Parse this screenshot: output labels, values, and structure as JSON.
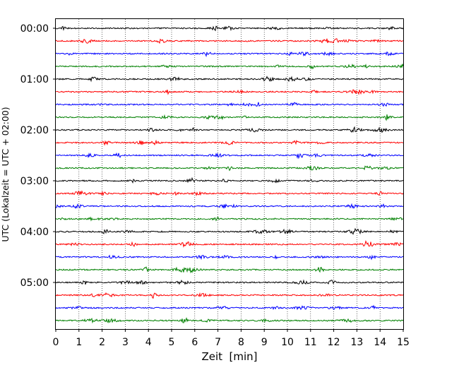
{
  "chart_data": {
    "type": "line",
    "title": "",
    "xlabel": "Zeit  [min]",
    "ylabel": "UTC (Lokalzeit = UTC + 02:00)",
    "xlim": [
      0,
      15
    ],
    "x_ticks": [
      "0",
      "1",
      "2",
      "3",
      "4",
      "5",
      "6",
      "7",
      "8",
      "9",
      "10",
      "11",
      "12",
      "13",
      "14",
      "15"
    ],
    "y_ticks": [
      "00:00",
      "01:00",
      "02:00",
      "03:00",
      "04:00",
      "05:00"
    ],
    "grid": "vertical dotted at each minute",
    "legend": "none",
    "trace_colors": [
      "#000000",
      "#ff0000",
      "#0000ff",
      "#008000"
    ],
    "traces": [
      {
        "start": "00:00",
        "color": "#000000"
      },
      {
        "start": "00:15",
        "color": "#ff0000"
      },
      {
        "start": "00:30",
        "color": "#0000ff"
      },
      {
        "start": "00:45",
        "color": "#008000"
      },
      {
        "start": "01:00",
        "color": "#000000"
      },
      {
        "start": "01:15",
        "color": "#ff0000"
      },
      {
        "start": "01:30",
        "color": "#0000ff"
      },
      {
        "start": "01:45",
        "color": "#008000"
      },
      {
        "start": "02:00",
        "color": "#000000"
      },
      {
        "start": "02:15",
        "color": "#ff0000"
      },
      {
        "start": "02:30",
        "color": "#0000ff"
      },
      {
        "start": "02:45",
        "color": "#008000"
      },
      {
        "start": "03:00",
        "color": "#000000"
      },
      {
        "start": "03:15",
        "color": "#ff0000"
      },
      {
        "start": "03:30",
        "color": "#0000ff"
      },
      {
        "start": "03:45",
        "color": "#008000"
      },
      {
        "start": "04:00",
        "color": "#000000"
      },
      {
        "start": "04:15",
        "color": "#ff0000"
      },
      {
        "start": "04:30",
        "color": "#0000ff"
      },
      {
        "start": "04:45",
        "color": "#008000"
      },
      {
        "start": "05:00",
        "color": "#000000"
      },
      {
        "start": "05:15",
        "color": "#ff0000"
      },
      {
        "start": "05:30",
        "color": "#0000ff"
      },
      {
        "start": "05:45",
        "color": "#008000"
      }
    ]
  }
}
